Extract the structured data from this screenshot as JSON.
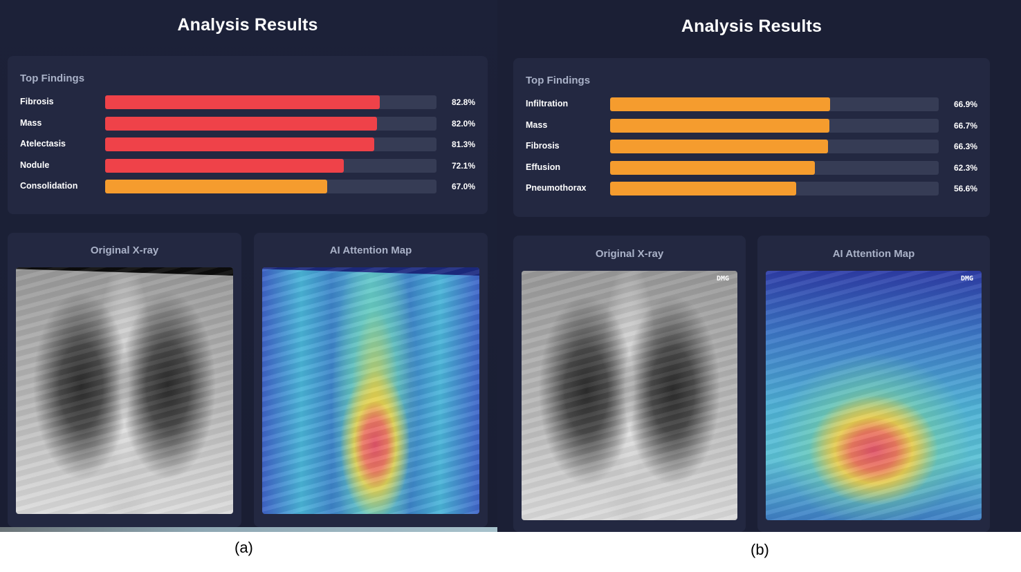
{
  "panels": [
    {
      "title": "Analysis Results",
      "findings_title": "Top Findings",
      "findings": [
        {
          "label": "Fibrosis",
          "value": 82.8,
          "pct": "82.8%",
          "color": "#ef4249"
        },
        {
          "label": "Mass",
          "value": 82.0,
          "pct": "82.0%",
          "color": "#ef4249"
        },
        {
          "label": "Atelectasis",
          "value": 81.3,
          "pct": "81.3%",
          "color": "#ef4249"
        },
        {
          "label": "Nodule",
          "value": 72.1,
          "pct": "72.1%",
          "color": "#ef4249"
        },
        {
          "label": "Consolidation",
          "value": 67.0,
          "pct": "67.0%",
          "color": "#f59c2e"
        }
      ],
      "original_label": "Original X-ray",
      "attention_label": "AI Attention Map",
      "caption": "(a)"
    },
    {
      "title": "Analysis Results",
      "findings_title": "Top Findings",
      "findings": [
        {
          "label": "Infiltration",
          "value": 66.9,
          "pct": "66.9%",
          "color": "#f59c2e"
        },
        {
          "label": "Mass",
          "value": 66.7,
          "pct": "66.7%",
          "color": "#f59c2e"
        },
        {
          "label": "Fibrosis",
          "value": 66.3,
          "pct": "66.3%",
          "color": "#f59c2e"
        },
        {
          "label": "Effusion",
          "value": 62.3,
          "pct": "62.3%",
          "color": "#f59c2e"
        },
        {
          "label": "Pneumothorax",
          "value": 56.6,
          "pct": "56.6%",
          "color": "#f59c2e"
        }
      ],
      "original_label": "Original X-ray",
      "attention_label": "AI Attention Map",
      "marker": "DMG",
      "caption": "(b)"
    }
  ],
  "colors": {
    "background": "#1b1f35",
    "card": "#232841",
    "track": "#363c55",
    "high": "#ef4249",
    "medium": "#f59c2e"
  }
}
